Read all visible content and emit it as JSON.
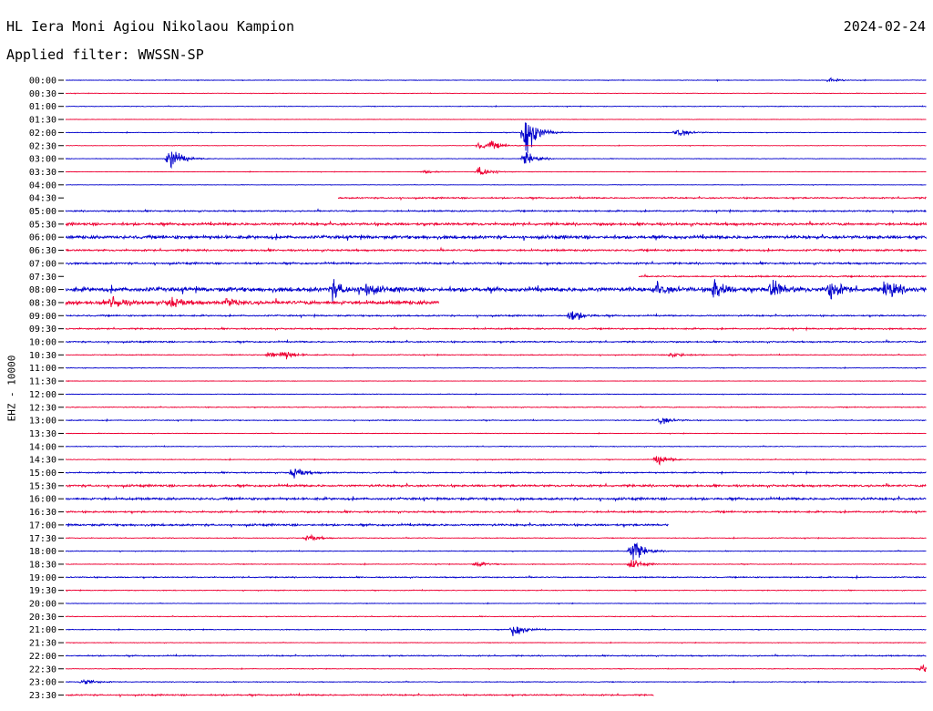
{
  "header": {
    "title": "HL Iera Moni Agiou Nikolaou Kampion",
    "subtitle": "Applied filter: WWSSN-SP",
    "date": "2024-02-24"
  },
  "chart_data": {
    "type": "line",
    "title": "HL Iera Moni Agiou Nikolaou Kampion",
    "subtitle": "Applied filter: WWSSN-SP",
    "ylabel": "EHZ - 10000",
    "colors": [
      "#0000cc",
      "#ee0033"
    ],
    "x_range_minutes": [
      0,
      30
    ],
    "rows": [
      {
        "time": "00:00",
        "events": [
          {
            "t": 26.5,
            "a": 3
          }
        ],
        "noise": 0.4,
        "active": [
          0,
          30
        ]
      },
      {
        "time": "00:30",
        "events": [],
        "noise": 0.3,
        "active": [
          0,
          30
        ]
      },
      {
        "time": "01:00",
        "events": [],
        "noise": 0.4,
        "active": [
          0,
          30
        ]
      },
      {
        "time": "01:30",
        "events": [],
        "noise": 0.3,
        "active": [
          0,
          30
        ]
      },
      {
        "time": "02:00",
        "events": [
          {
            "t": 15.9,
            "a": 40
          },
          {
            "t": 21.2,
            "a": 8
          }
        ],
        "noise": 0.4,
        "active": [
          0,
          30
        ]
      },
      {
        "time": "02:30",
        "events": [
          {
            "t": 14.3,
            "a": 5
          },
          {
            "t": 14.7,
            "a": 5
          }
        ],
        "noise": 0.3,
        "active": [
          0,
          30
        ]
      },
      {
        "time": "03:00",
        "events": [
          {
            "t": 3.5,
            "a": 20
          },
          {
            "t": 15.9,
            "a": 10
          }
        ],
        "noise": 0.4,
        "active": [
          0,
          30
        ]
      },
      {
        "time": "03:30",
        "events": [
          {
            "t": 12.4,
            "a": 3
          },
          {
            "t": 14.3,
            "a": 10
          }
        ],
        "noise": 0.3,
        "active": [
          0,
          30
        ]
      },
      {
        "time": "04:00",
        "events": [],
        "noise": 0.3,
        "active": [
          0,
          30
        ]
      },
      {
        "time": "04:30",
        "events": [],
        "noise": 1.0,
        "active": [
          9.5,
          30
        ]
      },
      {
        "time": "05:00",
        "events": [],
        "noise": 1.0,
        "active": [
          0,
          30
        ]
      },
      {
        "time": "05:30",
        "events": [],
        "noise": 1.8,
        "active": [
          0,
          30
        ]
      },
      {
        "time": "06:00",
        "events": [],
        "noise": 2.2,
        "active": [
          0,
          30
        ]
      },
      {
        "time": "06:30",
        "events": [],
        "noise": 1.3,
        "active": [
          0,
          30
        ]
      },
      {
        "time": "07:00",
        "events": [],
        "noise": 1.3,
        "active": [
          0,
          30
        ]
      },
      {
        "time": "07:30",
        "events": [],
        "noise": 1.0,
        "active": [
          20,
          30
        ]
      },
      {
        "time": "08:00",
        "events": [
          {
            "t": 9.2,
            "a": 14
          },
          {
            "t": 10.3,
            "a": 12
          },
          {
            "t": 20.5,
            "a": 10
          },
          {
            "t": 22.5,
            "a": 16
          },
          {
            "t": 24.5,
            "a": 16
          },
          {
            "t": 26.5,
            "a": 16
          },
          {
            "t": 28.5,
            "a": 16
          }
        ],
        "noise": 3.0,
        "active": [
          0,
          30
        ]
      },
      {
        "time": "08:30",
        "events": [
          {
            "t": 1.5,
            "a": 10
          },
          {
            "t": 3.5,
            "a": 10
          },
          {
            "t": 5.5,
            "a": 6
          }
        ],
        "noise": 2.6,
        "active": [
          0,
          13
        ]
      },
      {
        "time": "09:00",
        "events": [
          {
            "t": 17.5,
            "a": 10
          }
        ],
        "noise": 1.0,
        "active": [
          0,
          30
        ]
      },
      {
        "time": "09:30",
        "events": [],
        "noise": 1.0,
        "active": [
          0,
          30
        ]
      },
      {
        "time": "10:00",
        "events": [],
        "noise": 1.0,
        "active": [
          0,
          30
        ]
      },
      {
        "time": "10:30",
        "events": [
          {
            "t": 7,
            "a": 7
          },
          {
            "t": 7.5,
            "a": 6
          },
          {
            "t": 21,
            "a": 6
          }
        ],
        "noise": 0.6,
        "active": [
          0,
          30
        ]
      },
      {
        "time": "11:00",
        "events": [],
        "noise": 0.4,
        "active": [
          0,
          30
        ]
      },
      {
        "time": "11:30",
        "events": [],
        "noise": 0.3,
        "active": [
          0,
          30
        ]
      },
      {
        "time": "12:00",
        "events": [],
        "noise": 0.4,
        "active": [
          0,
          30
        ]
      },
      {
        "time": "12:30",
        "events": [],
        "noise": 0.6,
        "active": [
          0,
          30
        ]
      },
      {
        "time": "13:00",
        "events": [
          {
            "t": 20.6,
            "a": 7
          }
        ],
        "noise": 0.6,
        "active": [
          0,
          30
        ]
      },
      {
        "time": "13:30",
        "events": [],
        "noise": 0.4,
        "active": [
          0,
          30
        ]
      },
      {
        "time": "14:00",
        "events": [],
        "noise": 0.5,
        "active": [
          0,
          30
        ]
      },
      {
        "time": "14:30",
        "events": [
          {
            "t": 20.5,
            "a": 8
          }
        ],
        "noise": 0.5,
        "active": [
          0,
          30
        ]
      },
      {
        "time": "15:00",
        "events": [
          {
            "t": 7.8,
            "a": 10
          }
        ],
        "noise": 0.9,
        "active": [
          0,
          30
        ]
      },
      {
        "time": "15:30",
        "events": [],
        "noise": 1.5,
        "active": [
          0,
          30
        ]
      },
      {
        "time": "16:00",
        "events": [],
        "noise": 1.6,
        "active": [
          0,
          30
        ]
      },
      {
        "time": "16:30",
        "events": [],
        "noise": 1.2,
        "active": [
          0,
          30
        ]
      },
      {
        "time": "17:00",
        "events": [],
        "noise": 1.4,
        "active": [
          0,
          21
        ]
      },
      {
        "time": "17:30",
        "events": [
          {
            "t": 8.3,
            "a": 6
          }
        ],
        "noise": 0.5,
        "active": [
          0,
          30
        ]
      },
      {
        "time": "18:00",
        "events": [
          {
            "t": 19.6,
            "a": 20
          }
        ],
        "noise": 0.5,
        "active": [
          0,
          30
        ]
      },
      {
        "time": "18:30",
        "events": [
          {
            "t": 14.2,
            "a": 4
          },
          {
            "t": 19.6,
            "a": 7
          }
        ],
        "noise": 0.5,
        "active": [
          0,
          30
        ]
      },
      {
        "time": "19:00",
        "events": [],
        "noise": 0.8,
        "active": [
          0,
          30
        ]
      },
      {
        "time": "19:30",
        "events": [],
        "noise": 0.5,
        "active": [
          0,
          30
        ]
      },
      {
        "time": "20:00",
        "events": [],
        "noise": 0.4,
        "active": [
          0,
          30
        ]
      },
      {
        "time": "20:30",
        "events": [],
        "noise": 0.5,
        "active": [
          0,
          30
        ]
      },
      {
        "time": "21:00",
        "events": [
          {
            "t": 15.5,
            "a": 12
          }
        ],
        "noise": 0.5,
        "active": [
          0,
          30
        ]
      },
      {
        "time": "21:30",
        "events": [],
        "noise": 0.4,
        "active": [
          0,
          30
        ]
      },
      {
        "time": "22:00",
        "events": [],
        "noise": 0.8,
        "active": [
          0,
          30
        ]
      },
      {
        "time": "22:30",
        "events": [
          {
            "t": 29.7,
            "a": 7
          }
        ],
        "noise": 0.4,
        "active": [
          0,
          30
        ]
      },
      {
        "time": "23:00",
        "events": [
          {
            "t": 0.5,
            "a": 6
          }
        ],
        "noise": 0.5,
        "active": [
          0,
          30
        ]
      },
      {
        "time": "23:30",
        "events": [],
        "noise": 1.0,
        "active": [
          0,
          20.5
        ]
      }
    ]
  }
}
